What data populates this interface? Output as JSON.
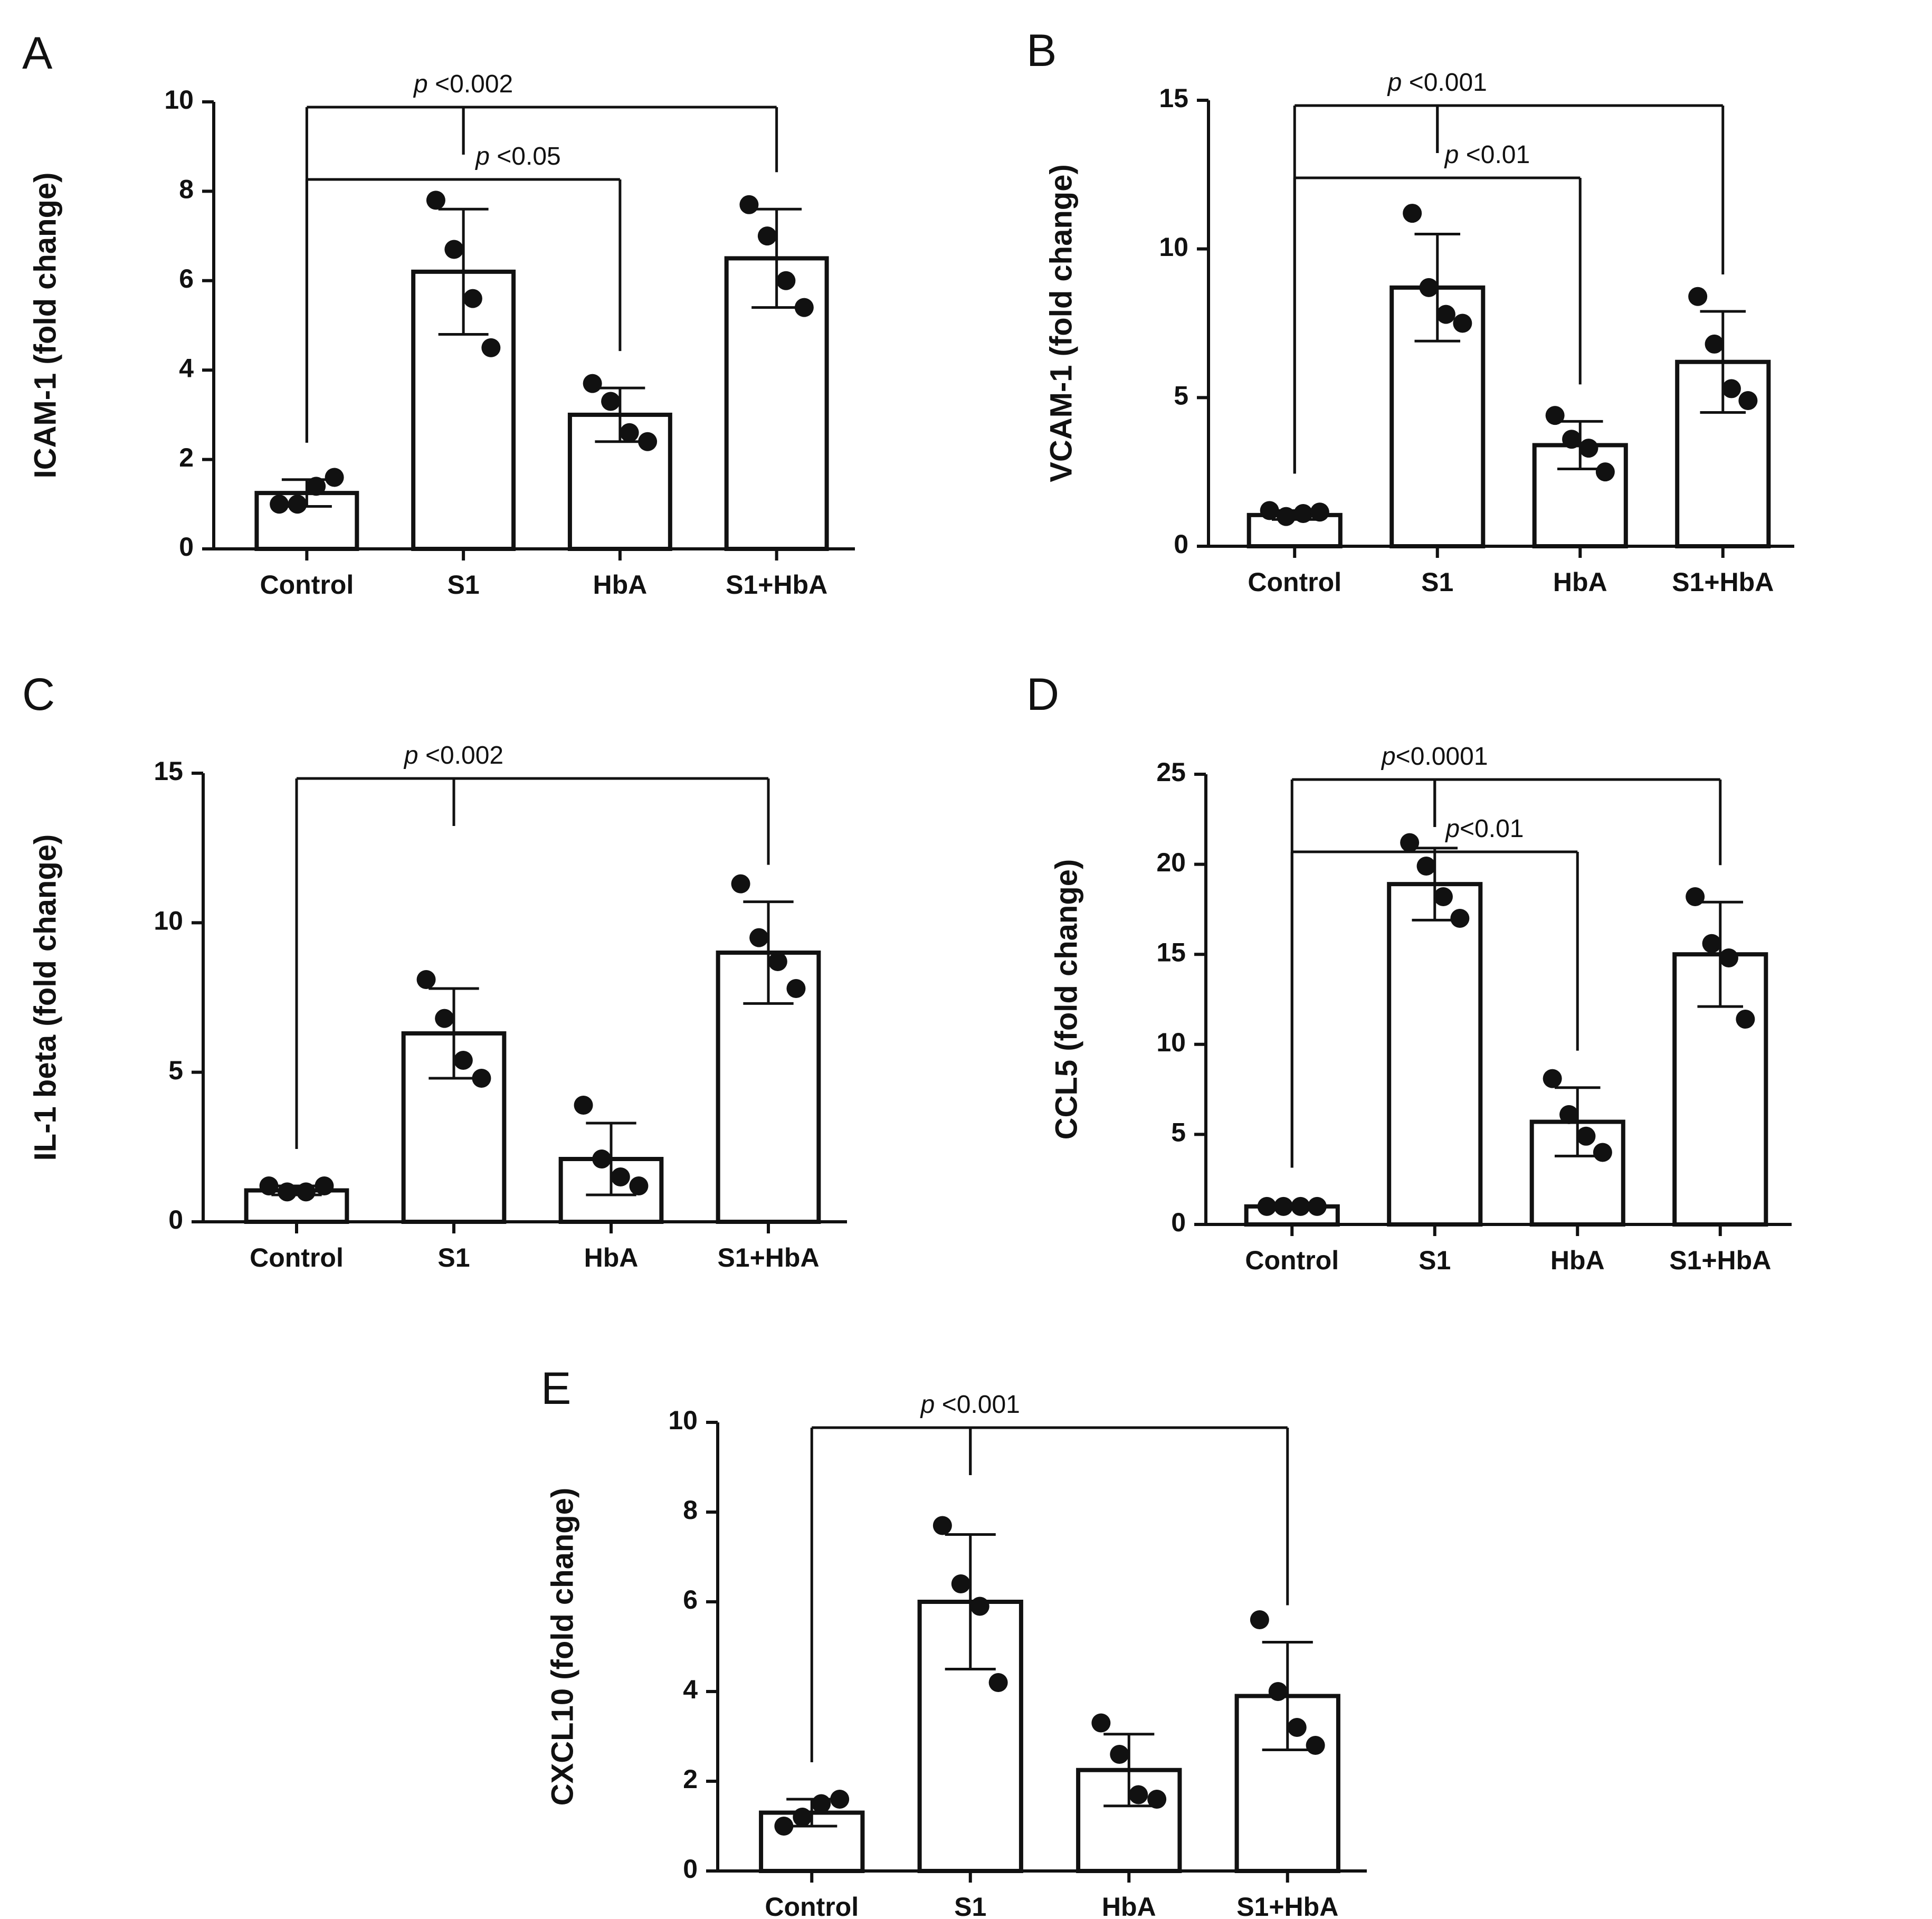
{
  "figure": {
    "description": "Five bar charts with individual data points and error bars showing fold change of inflammatory markers"
  },
  "chart_data": [
    {
      "id": "A",
      "panel_label": "A",
      "type": "bar",
      "title": "",
      "xlabel": "",
      "ylabel": "ICAM-1 (fold change)",
      "ylim": [
        0,
        10
      ],
      "yticks": [
        0,
        2,
        4,
        6,
        8,
        10
      ],
      "categories": [
        "Control",
        "S1",
        "HbA",
        "S1+HbA"
      ],
      "values": [
        1.25,
        6.2,
        3.0,
        6.5
      ],
      "sd": [
        0.3,
        1.4,
        0.6,
        1.1
      ],
      "points": [
        [
          1.0,
          1.0,
          1.4,
          1.6
        ],
        [
          7.8,
          6.7,
          5.6,
          4.5
        ],
        [
          3.7,
          3.3,
          2.6,
          2.4
        ],
        [
          7.7,
          7.0,
          6.0,
          5.4
        ]
      ],
      "comparisons": [
        {
          "p_prefix": "p",
          "p_rest": " <0.002",
          "from": 0,
          "to": [
            1,
            3
          ],
          "level": 0
        },
        {
          "p_prefix": "p",
          "p_rest": " <0.05",
          "from": 0,
          "to": [
            2
          ],
          "level": 1
        }
      ]
    },
    {
      "id": "B",
      "panel_label": "B",
      "type": "bar",
      "title": "",
      "xlabel": "",
      "ylabel": "VCAM-1 (fold change)",
      "ylim": [
        0,
        15
      ],
      "yticks": [
        0,
        5,
        10,
        15
      ],
      "categories": [
        "Control",
        "S1",
        "HbA",
        "S1+HbA"
      ],
      "values": [
        1.05,
        8.7,
        3.4,
        6.2
      ],
      "sd": [
        0.15,
        1.8,
        0.8,
        1.7
      ],
      "points": [
        [
          1.2,
          1.0,
          1.1,
          1.15
        ],
        [
          11.2,
          8.7,
          7.8,
          7.5
        ],
        [
          4.4,
          3.6,
          3.3,
          2.5
        ],
        [
          8.4,
          6.8,
          5.3,
          4.9
        ]
      ],
      "comparisons": [
        {
          "p_prefix": "p",
          "p_rest": " <0.001",
          "from": 0,
          "to": [
            1,
            3
          ],
          "level": 0
        },
        {
          "p_prefix": "p",
          "p_rest": " <0.01",
          "from": 0,
          "to": [
            2
          ],
          "level": 1
        }
      ]
    },
    {
      "id": "C",
      "panel_label": "C",
      "type": "bar",
      "title": "",
      "xlabel": "",
      "ylabel": "IL-1 beta (fold change)",
      "ylim": [
        0,
        15
      ],
      "yticks": [
        0,
        5,
        10,
        15
      ],
      "categories": [
        "Control",
        "S1",
        "HbA",
        "S1+HbA"
      ],
      "values": [
        1.05,
        6.3,
        2.1,
        9.0
      ],
      "sd": [
        0.15,
        1.5,
        1.2,
        1.7
      ],
      "points": [
        [
          1.2,
          1.0,
          1.0,
          1.2
        ],
        [
          8.1,
          6.8,
          5.4,
          4.8
        ],
        [
          3.9,
          2.1,
          1.5,
          1.2
        ],
        [
          11.3,
          9.5,
          8.7,
          7.8
        ]
      ],
      "comparisons": [
        {
          "p_prefix": "p",
          "p_rest": " <0.002",
          "from": 0,
          "to": [
            1,
            3
          ],
          "level": 0
        }
      ]
    },
    {
      "id": "D",
      "panel_label": "D",
      "type": "bar",
      "title": "",
      "xlabel": "",
      "ylabel": "CCL5 (fold change)",
      "ylim": [
        0,
        25
      ],
      "yticks": [
        0,
        5,
        10,
        15,
        20,
        25
      ],
      "categories": [
        "Control",
        "S1",
        "HbA",
        "S1+HbA"
      ],
      "values": [
        1.0,
        18.9,
        5.7,
        15.0
      ],
      "sd": [
        0.1,
        2.0,
        1.9,
        2.9
      ],
      "points": [
        [
          1.0,
          1.0,
          1.0,
          1.0
        ],
        [
          21.2,
          19.9,
          18.2,
          17.0
        ],
        [
          8.1,
          6.1,
          4.9,
          4.0
        ],
        [
          18.2,
          15.6,
          14.8,
          11.4
        ]
      ],
      "comparisons": [
        {
          "p_prefix": "p",
          "p_rest": "<0.0001",
          "from": 0,
          "to": [
            1,
            3
          ],
          "level": 0
        },
        {
          "p_prefix": "p",
          "p_rest": "<0.01",
          "from": 0,
          "to": [
            2
          ],
          "level": 1
        }
      ]
    },
    {
      "id": "E",
      "panel_label": "E",
      "type": "bar",
      "title": "",
      "xlabel": "",
      "ylabel": "CXCL10 (fold change)",
      "ylim": [
        0,
        10
      ],
      "yticks": [
        0,
        2,
        4,
        6,
        8,
        10
      ],
      "categories": [
        "Control",
        "S1",
        "HbA",
        "S1+HbA"
      ],
      "values": [
        1.3,
        6.0,
        2.25,
        3.9
      ],
      "sd": [
        0.3,
        1.5,
        0.8,
        1.2
      ],
      "points": [
        [
          1.0,
          1.2,
          1.5,
          1.6
        ],
        [
          7.7,
          6.4,
          5.9,
          4.2
        ],
        [
          3.3,
          2.6,
          1.7,
          1.6
        ],
        [
          5.6,
          4.0,
          3.2,
          2.8
        ]
      ],
      "comparisons": [
        {
          "p_prefix": "p",
          "p_rest": " <0.001",
          "from": 0,
          "to": [
            1,
            3
          ],
          "level": 0
        }
      ]
    }
  ]
}
